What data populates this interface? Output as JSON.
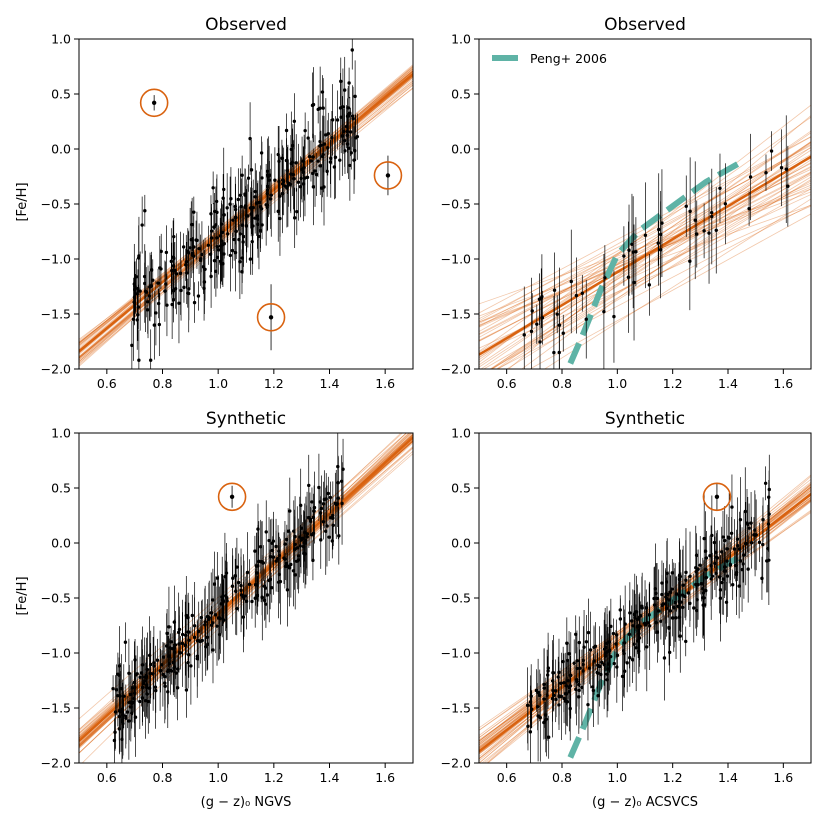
{
  "figure": {
    "background": "#ffffff"
  },
  "colors": {
    "fit": "#d9620f",
    "points": "#000000",
    "circle": "#d9620f",
    "peng": "#5fb3a6"
  },
  "chart_data": [
    {
      "panel": "top-left",
      "type": "scatter",
      "title": "Observed",
      "xlabel": "",
      "ylabel": "[Fe/H]",
      "xlim": [
        0.5,
        1.7
      ],
      "ylim": [
        -2.0,
        1.0
      ],
      "xticks": [
        "0.6",
        "0.8",
        "1.0",
        "1.2",
        "1.4",
        "1.6"
      ],
      "yticks": [
        "1.0",
        "0.5",
        "0.0",
        "−0.5",
        "−1.0",
        "−1.5",
        "−2.0"
      ],
      "fit": {
        "slope": 2.1,
        "intercept": -2.89,
        "spread": 0.045,
        "samples": 45
      },
      "scatter": {
        "n": 300,
        "xmin": 0.68,
        "xmax": 1.5,
        "sigma": 0.22,
        "err_min": 0.12,
        "err_max": 0.38,
        "seed": 11
      },
      "outliers": [
        {
          "x": 0.77,
          "y": 0.42,
          "err": 0.07,
          "circled": true
        },
        {
          "x": 1.61,
          "y": -0.24,
          "err": 0.18,
          "circled": true
        },
        {
          "x": 1.19,
          "y": -1.53,
          "err": 0.3,
          "circled": true
        }
      ],
      "peng_curve": null,
      "legend": null
    },
    {
      "panel": "top-right",
      "type": "scatter",
      "title": "Observed",
      "xlabel": "",
      "ylabel": "",
      "xlim": [
        0.5,
        1.7
      ],
      "ylim": [
        -2.0,
        1.0
      ],
      "xticks": [
        "0.6",
        "0.8",
        "1.0",
        "1.2",
        "1.4",
        "1.6"
      ],
      "yticks": [
        "1.0",
        "0.5",
        "0.0",
        "−0.5",
        "−1.0",
        "−1.5",
        "−2.0"
      ],
      "fit": {
        "slope": 1.5,
        "intercept": -2.62,
        "spread": 0.18,
        "samples": 45
      },
      "scatter": {
        "n": 55,
        "xmin": 0.65,
        "xmax": 1.62,
        "sigma": 0.2,
        "err_min": 0.15,
        "err_max": 0.55,
        "seed": 23
      },
      "outliers": [],
      "peng_curve": [
        [
          0.83,
          -1.95
        ],
        [
          0.88,
          -1.66
        ],
        [
          0.94,
          -1.28
        ],
        [
          1.0,
          -0.96
        ],
        [
          1.08,
          -0.74
        ],
        [
          1.2,
          -0.52
        ],
        [
          1.32,
          -0.3
        ],
        [
          1.44,
          -0.13
        ]
      ],
      "legend": {
        "label": "Peng+ 2006",
        "position": "top-left"
      }
    },
    {
      "panel": "bottom-left",
      "type": "scatter",
      "title": "Synthetic",
      "xlabel": "(g − z)₀ NGVS",
      "ylabel": "[Fe/H]",
      "xlim": [
        0.5,
        1.7
      ],
      "ylim": [
        -2.0,
        1.0
      ],
      "xticks": [
        "0.6",
        "0.8",
        "1.0",
        "1.2",
        "1.4",
        "1.6"
      ],
      "yticks": [
        "1.0",
        "0.5",
        "0.0",
        "−0.5",
        "−1.0",
        "−1.5",
        "−2.0"
      ],
      "fit": {
        "slope": 2.3,
        "intercept": -2.95,
        "spread": 0.05,
        "samples": 45
      },
      "scatter": {
        "n": 300,
        "xmin": 0.62,
        "xmax": 1.45,
        "sigma": 0.17,
        "err_min": 0.12,
        "err_max": 0.4,
        "seed": 37
      },
      "outliers": [
        {
          "x": 1.05,
          "y": 0.42,
          "err": 0.1,
          "circled": true
        }
      ],
      "peng_curve": null,
      "legend": null
    },
    {
      "panel": "bottom-right",
      "type": "scatter",
      "title": "Synthetic",
      "xlabel": "(g − z)₀ ACSVCS",
      "ylabel": "",
      "xlim": [
        0.5,
        1.7
      ],
      "ylim": [
        -2.0,
        1.0
      ],
      "xticks": [
        "0.6",
        "0.8",
        "1.0",
        "1.2",
        "1.4",
        "1.6"
      ],
      "yticks": [
        "1.0",
        "0.5",
        "0.0",
        "−0.5",
        "−1.0",
        "−1.5",
        "−2.0"
      ],
      "fit": {
        "slope": 1.95,
        "intercept": -2.87,
        "spread": 0.06,
        "samples": 45
      },
      "scatter": {
        "n": 300,
        "xmin": 0.67,
        "xmax": 1.55,
        "sigma": 0.18,
        "err_min": 0.12,
        "err_max": 0.42,
        "seed": 53
      },
      "outliers": [
        {
          "x": 1.36,
          "y": 0.42,
          "err": 0.12,
          "circled": true
        }
      ],
      "peng_curve": [
        [
          0.83,
          -1.95
        ],
        [
          0.88,
          -1.66
        ],
        [
          0.94,
          -1.28
        ],
        [
          1.0,
          -0.96
        ],
        [
          1.08,
          -0.74
        ],
        [
          1.2,
          -0.52
        ],
        [
          1.32,
          -0.3
        ],
        [
          1.44,
          -0.13
        ]
      ],
      "legend": null
    }
  ]
}
